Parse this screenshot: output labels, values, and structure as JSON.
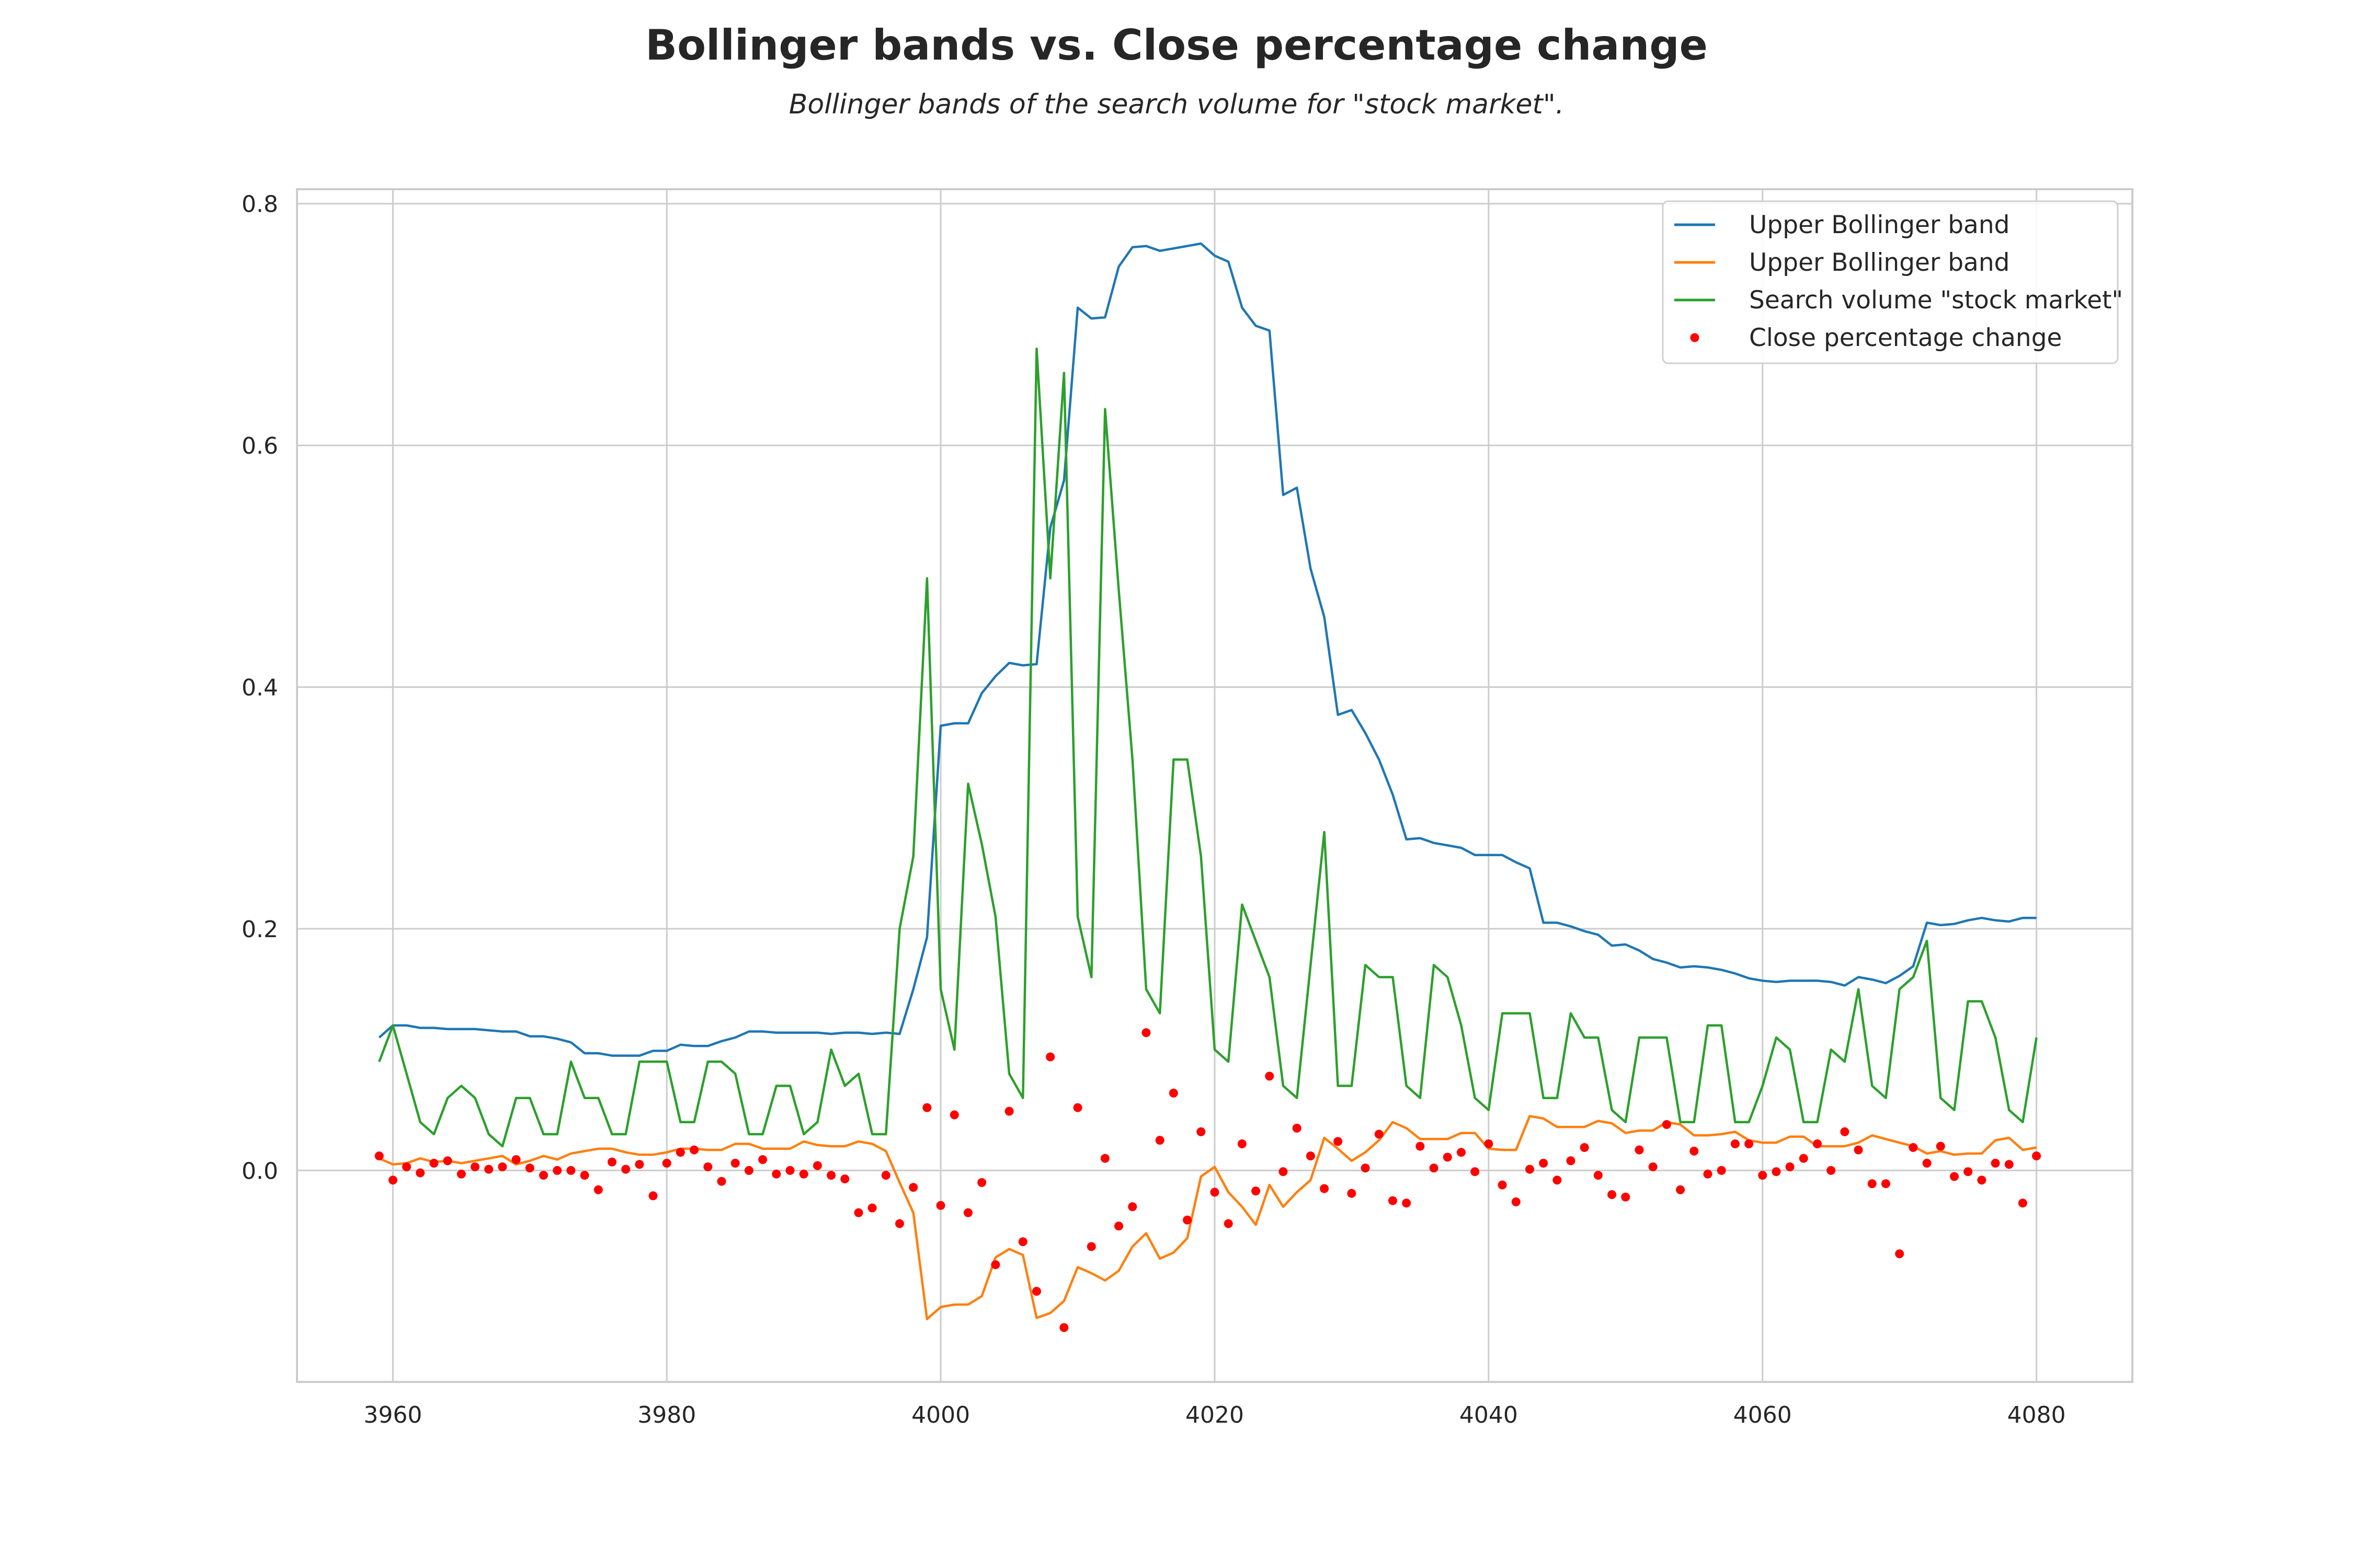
{
  "title": "Bollinger bands vs. Close percentage change",
  "subtitle": "Bollinger bands of the search volume for \"stock market\".",
  "colors": {
    "upper": "#1f77b4",
    "lower": "#ff7f0e",
    "search": "#2ca02c",
    "close": "#ff0000",
    "grid": "#cccccc",
    "axes_bg": "#ffffff"
  },
  "chart_data": {
    "type": "line",
    "xlim": [
      3953,
      4087
    ],
    "ylim": [
      -0.175,
      0.812
    ],
    "xticks": [
      3960,
      3980,
      4000,
      4020,
      4040,
      4060,
      4080
    ],
    "yticks": [
      0.0,
      0.2,
      0.4,
      0.6,
      0.8
    ],
    "ytick_labels": [
      "0.0",
      "0.2",
      "0.4",
      "0.6",
      "0.8"
    ],
    "grid": true,
    "legend_position": "top-right",
    "x_start": 3959,
    "series": [
      {
        "name": "Upper Bollinger band",
        "kind": "line",
        "color": "#1f77b4",
        "values": [
          0.11,
          0.12,
          0.12,
          0.118,
          0.118,
          0.117,
          0.117,
          0.117,
          0.116,
          0.115,
          0.115,
          0.111,
          0.111,
          0.109,
          0.106,
          0.097,
          0.097,
          0.095,
          0.095,
          0.095,
          0.099,
          0.099,
          0.104,
          0.103,
          0.103,
          0.107,
          0.11,
          0.115,
          0.115,
          0.114,
          0.114,
          0.114,
          0.114,
          0.113,
          0.114,
          0.114,
          0.113,
          0.114,
          0.113,
          0.15,
          0.193,
          0.368,
          0.37,
          0.37,
          0.395,
          0.409,
          0.42,
          0.418,
          0.419,
          0.532,
          0.571,
          0.714,
          0.705,
          0.706,
          0.748,
          0.764,
          0.765,
          0.761,
          0.763,
          0.765,
          0.767,
          0.757,
          0.752,
          0.714,
          0.699,
          0.695,
          0.559,
          0.565,
          0.498,
          0.458,
          0.377,
          0.381,
          0.362,
          0.34,
          0.311,
          0.274,
          0.275,
          0.271,
          0.269,
          0.267,
          0.261,
          0.261,
          0.261,
          0.255,
          0.25,
          0.205,
          0.205,
          0.202,
          0.198,
          0.195,
          0.186,
          0.187,
          0.182,
          0.175,
          0.172,
          0.168,
          0.169,
          0.168,
          0.166,
          0.163,
          0.159,
          0.157,
          0.156,
          0.157,
          0.157,
          0.157,
          0.156,
          0.153,
          0.16,
          0.158,
          0.155,
          0.161,
          0.169,
          0.205,
          0.203,
          0.204,
          0.207,
          0.209,
          0.207,
          0.206,
          0.209,
          0.209
        ]
      },
      {
        "name": "Upper Bollinger band",
        "kind": "line",
        "color": "#ff7f0e",
        "values": [
          0.01,
          0.005,
          0.006,
          0.01,
          0.007,
          0.008,
          0.006,
          0.008,
          0.01,
          0.012,
          0.005,
          0.008,
          0.012,
          0.009,
          0.014,
          0.016,
          0.018,
          0.018,
          0.015,
          0.013,
          0.013,
          0.015,
          0.018,
          0.018,
          0.017,
          0.017,
          0.022,
          0.022,
          0.018,
          0.018,
          0.018,
          0.024,
          0.021,
          0.02,
          0.02,
          0.024,
          0.022,
          0.016,
          -0.01,
          -0.035,
          -0.123,
          -0.113,
          -0.111,
          -0.111,
          -0.104,
          -0.072,
          -0.065,
          -0.07,
          -0.122,
          -0.118,
          -0.108,
          -0.08,
          -0.085,
          -0.091,
          -0.083,
          -0.063,
          -0.052,
          -0.073,
          -0.068,
          -0.056,
          -0.005,
          0.003,
          -0.018,
          -0.03,
          -0.045,
          -0.012,
          -0.03,
          -0.018,
          -0.008,
          0.027,
          0.018,
          0.008,
          0.015,
          0.025,
          0.04,
          0.035,
          0.026,
          0.026,
          0.026,
          0.031,
          0.031,
          0.018,
          0.017,
          0.017,
          0.045,
          0.043,
          0.036,
          0.036,
          0.036,
          0.041,
          0.039,
          0.031,
          0.033,
          0.033,
          0.04,
          0.038,
          0.029,
          0.029,
          0.03,
          0.032,
          0.025,
          0.023,
          0.023,
          0.028,
          0.028,
          0.02,
          0.02,
          0.02,
          0.023,
          0.029,
          0.026,
          0.023,
          0.02,
          0.014,
          0.016,
          0.013,
          0.014,
          0.014,
          0.025,
          0.027,
          0.017,
          0.019
        ]
      },
      {
        "name": "Search volume \"stock market\"",
        "kind": "line",
        "color": "#2ca02c",
        "values": [
          0.09,
          0.12,
          0.08,
          0.04,
          0.03,
          0.06,
          0.07,
          0.06,
          0.03,
          0.02,
          0.06,
          0.06,
          0.03,
          0.03,
          0.09,
          0.06,
          0.06,
          0.03,
          0.03,
          0.09,
          0.09,
          0.09,
          0.04,
          0.04,
          0.09,
          0.09,
          0.08,
          0.03,
          0.03,
          0.07,
          0.07,
          0.03,
          0.04,
          0.1,
          0.07,
          0.08,
          0.03,
          0.03,
          0.2,
          0.26,
          0.49,
          0.15,
          0.1,
          0.32,
          0.27,
          0.21,
          0.08,
          0.06,
          0.68,
          0.49,
          0.66,
          0.21,
          0.16,
          0.63,
          0.48,
          0.34,
          0.15,
          0.13,
          0.34,
          0.34,
          0.26,
          0.1,
          0.09,
          0.22,
          0.19,
          0.16,
          0.07,
          0.06,
          0.17,
          0.28,
          0.07,
          0.07,
          0.17,
          0.16,
          0.16,
          0.07,
          0.06,
          0.17,
          0.16,
          0.12,
          0.06,
          0.05,
          0.13,
          0.13,
          0.13,
          0.06,
          0.06,
          0.13,
          0.11,
          0.11,
          0.05,
          0.04,
          0.11,
          0.11,
          0.11,
          0.04,
          0.04,
          0.12,
          0.12,
          0.04,
          0.04,
          0.07,
          0.11,
          0.1,
          0.04,
          0.04,
          0.1,
          0.09,
          0.15,
          0.07,
          0.06,
          0.15,
          0.16,
          0.19,
          0.06,
          0.05,
          0.14,
          0.14,
          0.11,
          0.05,
          0.04,
          0.11
        ]
      },
      {
        "name": "Close percentage change",
        "kind": "scatter",
        "color": "#ff0000",
        "values": [
          0.012,
          -0.008,
          0.003,
          -0.002,
          0.006,
          0.008,
          -0.003,
          0.003,
          0.001,
          0.003,
          0.009,
          0.002,
          -0.004,
          0.0,
          0.0,
          -0.004,
          -0.016,
          0.007,
          0.001,
          0.005,
          -0.021,
          0.006,
          0.015,
          0.017,
          0.003,
          -0.009,
          0.006,
          0.0,
          0.009,
          -0.003,
          0.0,
          -0.003,
          0.004,
          -0.004,
          -0.007,
          -0.035,
          -0.031,
          -0.004,
          -0.044,
          -0.014,
          0.052,
          -0.029,
          0.046,
          -0.035,
          -0.01,
          -0.078,
          0.049,
          -0.059,
          -0.1,
          0.094,
          -0.13,
          0.052,
          -0.063,
          0.01,
          -0.046,
          -0.03,
          0.114,
          0.025,
          0.064,
          -0.041,
          0.032,
          -0.018,
          -0.044,
          0.022,
          -0.017,
          0.078,
          -0.001,
          0.035,
          0.012,
          -0.015,
          0.024,
          -0.019,
          0.002,
          0.03,
          -0.025,
          -0.027,
          0.02,
          0.002,
          0.011,
          0.015,
          -0.001,
          0.022,
          -0.012,
          -0.026,
          0.001,
          0.006,
          -0.008,
          0.008,
          0.019,
          -0.004,
          -0.02,
          -0.022,
          0.017,
          0.003,
          0.038,
          -0.016,
          0.016,
          -0.003,
          0.0,
          0.022,
          0.022,
          -0.004,
          -0.001,
          0.003,
          0.01,
          0.022,
          0.0,
          0.032,
          0.017,
          -0.011,
          -0.011,
          -0.069,
          0.019,
          0.006,
          0.02,
          -0.005,
          -0.001,
          -0.008,
          0.006,
          0.005,
          -0.027,
          0.012
        ]
      }
    ]
  }
}
